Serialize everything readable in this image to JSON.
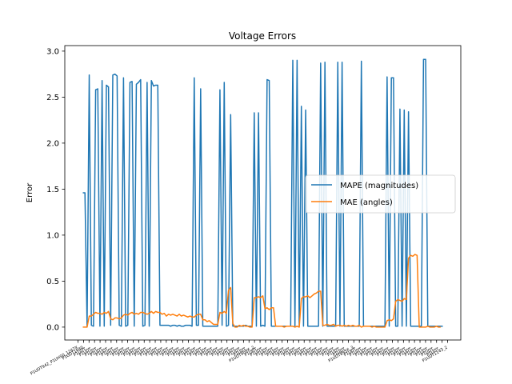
{
  "chart_data": {
    "type": "line",
    "title": "Voltage Errors",
    "xlabel": "",
    "ylabel": "Error",
    "ylim": [
      -0.14,
      3.06
    ],
    "yticks": [
      0.0,
      0.5,
      1.0,
      1.5,
      2.0,
      2.5,
      3.0
    ],
    "ytick_labels": [
      "0.0",
      "0.5",
      "1.0",
      "1.5",
      "2.0",
      "2.5",
      "3.0"
    ],
    "grid": false,
    "legend_position": "center-right",
    "x_tick_labels": [
      "P1UDT942_P1UHS0_1247X",
      "P1UDT1640",
      "P1UDT...",
      "P1UDT...",
      "P1UDT...",
      "P1UDT...",
      "P1UDT...",
      "P1UDT...",
      "P1UDT...",
      "P1UDT...",
      "P1UDT...",
      "P1UDT...",
      "P1UDT...",
      "P1UDT...",
      "P1UDT...",
      "P1UDT...",
      "P1UDT...",
      "P1UDT...",
      "P1UDT...",
      "P1UDT...",
      "P1UDT...",
      "P1UDT...",
      "P1UDT...",
      "P1UDT...",
      "P1UDT...",
      "P1UDT...",
      "P1UDT...",
      "P1UDT...",
      "P1UDT...",
      "P1UDT...",
      "P1UDT...",
      "P1UDT...",
      "P1UDT909X_2",
      "P1UDT...",
      "P1UDT...",
      "P1UDT...",
      "P1UDT...",
      "P1UDT...",
      "P1UDT...",
      "P1UDT...",
      "P1UDT...",
      "P1UDT...",
      "P1UDT...",
      "P1UDT...",
      "P1UDT...",
      "P1UDT...",
      "P1UDT...",
      "P1UDT...",
      "P1UDT...",
      "P1UDT...",
      "P1UDT895X_3",
      "P1UDT...",
      "P1UDT...",
      "P1UDT...",
      "P1UDT...",
      "P1UDT...",
      "P1UDT...",
      "P1UDT...",
      "P1UDT...",
      "P1UDT...",
      "P1UDT...",
      "P1UDT...",
      "P1UDT...",
      "P1UDT...",
      "P1UDT...",
      "P1UDT...",
      "P1UDT...",
      "P1UDT1143_2"
    ],
    "series": [
      {
        "name": "MAPE (magnitudes)",
        "color": "#1f77b4",
        "values": [
          1.46,
          1.46,
          0.01,
          2.74,
          0.02,
          0.01,
          2.58,
          2.59,
          0.01,
          2.68,
          0.01,
          2.63,
          2.61,
          0.02,
          2.74,
          2.75,
          2.73,
          0.02,
          0.01,
          2.71,
          0.01,
          0.02,
          2.66,
          2.67,
          0.01,
          2.64,
          2.66,
          2.69,
          0.01,
          0.02,
          2.66,
          0.01,
          2.68,
          2.62,
          2.63,
          2.63,
          0.02,
          0.02,
          0.02,
          0.02,
          0.02,
          0.01,
          0.02,
          0.02,
          0.01,
          0.02,
          0.01,
          0.01,
          0.02,
          0.02,
          0.02,
          0.01,
          2.71,
          0.02,
          0.02,
          2.59,
          0.01,
          0.01,
          0.01,
          0.01,
          0.01,
          0.01,
          0.01,
          0.01,
          2.58,
          0.02,
          2.66,
          0.01,
          0.02,
          2.31,
          0.01,
          0.01,
          0.01,
          0.01,
          0.01,
          0.01,
          0.02,
          0.01,
          0.01,
          0.01,
          2.33,
          0.01,
          2.33,
          0.01,
          0.02,
          0.01,
          2.69,
          2.68,
          0.01,
          0.01,
          0.01,
          0.01,
          0.01,
          0.01,
          0.01,
          0.01,
          0.01,
          0.01,
          2.9,
          0.01,
          2.9,
          0.01,
          2.4,
          0.01,
          2.36,
          0.01,
          0.01,
          0.01,
          0.01,
          0.01,
          0.01,
          2.87,
          0.01,
          2.88,
          0.01,
          0.01,
          0.01,
          0.01,
          0.01,
          2.88,
          0.01,
          2.88,
          0.01,
          0.01,
          0.01,
          0.01,
          0.01,
          0.01,
          0.01,
          0.01,
          2.89,
          0.01,
          0.01,
          0.01,
          0.01,
          0.01,
          0.01,
          0.01,
          0.01,
          0.01,
          0.01,
          0.01,
          2.72,
          0.01,
          2.71,
          2.71,
          0.01,
          0.01,
          2.37,
          0.01,
          2.36,
          0.01,
          2.34,
          0.01,
          0.01,
          0.01,
          0.01,
          0.01,
          0.01,
          2.91,
          2.91,
          0.01,
          0.01,
          0.01,
          0.01,
          0.01,
          0.01,
          0.01,
          0.01
        ]
      },
      {
        "name": "MAE (angles)",
        "color": "#ff7f0e",
        "values": [
          0.0,
          0.0,
          0.0,
          0.12,
          0.12,
          0.14,
          0.16,
          0.15,
          0.15,
          0.14,
          0.16,
          0.15,
          0.17,
          0.09,
          0.08,
          0.1,
          0.1,
          0.09,
          0.1,
          0.13,
          0.14,
          0.13,
          0.15,
          0.16,
          0.14,
          0.15,
          0.14,
          0.16,
          0.16,
          0.15,
          0.14,
          0.15,
          0.17,
          0.15,
          0.17,
          0.16,
          0.16,
          0.14,
          0.15,
          0.12,
          0.14,
          0.13,
          0.14,
          0.13,
          0.12,
          0.14,
          0.12,
          0.13,
          0.12,
          0.11,
          0.12,
          0.11,
          0.11,
          0.13,
          0.14,
          0.14,
          0.08,
          0.08,
          0.06,
          0.07,
          0.05,
          0.03,
          0.03,
          0.03,
          0.16,
          0.15,
          0.17,
          0.15,
          0.4,
          0.43,
          0.04,
          0.0,
          0.0,
          0.02,
          0.01,
          0.02,
          0.01,
          0.01,
          0.0,
          0.0,
          0.32,
          0.32,
          0.33,
          0.32,
          0.34,
          0.2,
          0.21,
          0.19,
          0.21,
          0.21,
          0.01,
          0.01,
          0.01,
          0.01,
          0.0,
          0.01,
          0.01,
          0.01,
          0.01,
          0.0,
          0.01,
          0.0,
          0.31,
          0.33,
          0.33,
          0.34,
          0.32,
          0.34,
          0.36,
          0.37,
          0.39,
          0.39,
          0.02,
          0.02,
          0.03,
          0.02,
          0.02,
          0.03,
          0.01,
          0.02,
          0.02,
          0.01,
          0.02,
          0.01,
          0.02,
          0.01,
          0.02,
          0.01,
          0.01,
          0.02,
          0.0,
          0.01,
          0.01,
          0.01,
          0.01,
          0.0,
          0.01,
          0.0,
          0.0,
          0.0,
          0.0,
          0.0,
          0.07,
          0.08,
          0.07,
          0.09,
          0.28,
          0.3,
          0.29,
          0.28,
          0.31,
          0.3,
          0.75,
          0.78,
          0.77,
          0.79,
          0.78,
          0.0,
          0.0,
          0.0,
          0.0,
          0.01,
          0.0,
          0.0,
          0.0,
          0.01,
          0.0,
          0.0
        ]
      }
    ]
  }
}
